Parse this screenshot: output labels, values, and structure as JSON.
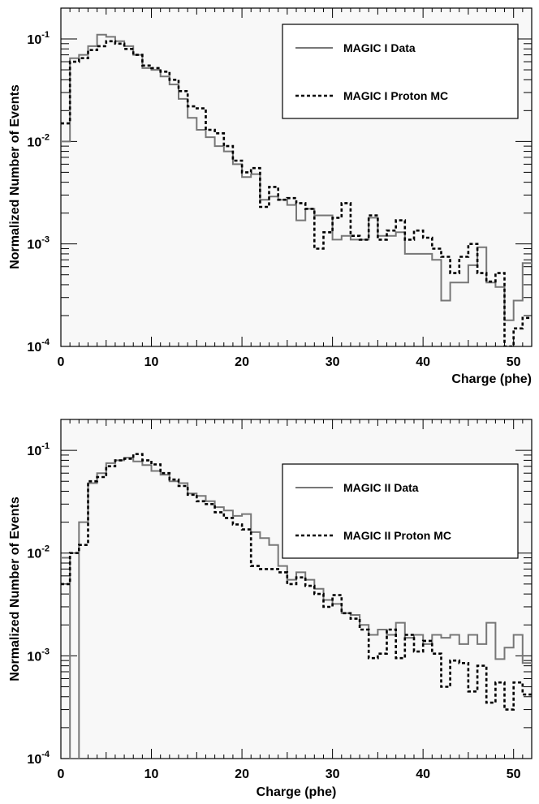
{
  "colors": {
    "background": "#ffffff",
    "frame": "#f8f8f8",
    "data_series": "#777777",
    "mc_series": "#000000"
  },
  "chart_data": [
    {
      "type": "line",
      "plot_style": "step-histogram",
      "title": "",
      "xlabel": "Charge (phe)",
      "ylabel": "Normalized Number of Events",
      "xlim": [
        0,
        52
      ],
      "ylim": [
        0.0001,
        0.2
      ],
      "yscale": "log",
      "grid": false,
      "legend_position": "top-right",
      "x_ticks": [
        {
          "value": 0,
          "label": "0"
        },
        {
          "value": 10,
          "label": "10"
        },
        {
          "value": 20,
          "label": "20"
        },
        {
          "value": 30,
          "label": "30"
        },
        {
          "value": 40,
          "label": "40"
        },
        {
          "value": 50,
          "label": "50"
        }
      ],
      "y_ticks": [
        {
          "value": 0.1,
          "base": "10",
          "exp": "-1"
        },
        {
          "value": 0.01,
          "base": "10",
          "exp": "-2"
        },
        {
          "value": 0.001,
          "base": "10",
          "exp": "-3"
        },
        {
          "value": 0.0001,
          "base": "10",
          "exp": "-4"
        }
      ],
      "bin_edges": [
        0,
        1,
        2,
        3,
        4,
        5,
        6,
        7,
        8,
        9,
        10,
        11,
        12,
        13,
        14,
        15,
        16,
        17,
        18,
        19,
        20,
        21,
        22,
        23,
        24,
        25,
        26,
        27,
        28,
        29,
        30,
        31,
        32,
        33,
        34,
        35,
        36,
        37,
        38,
        39,
        40,
        41,
        42,
        43,
        44,
        45,
        46,
        47,
        48,
        49,
        50,
        51,
        52
      ],
      "series": [
        {
          "name": "MAGIC I Data",
          "style": "solid",
          "values": [
            0.01,
            0.065,
            0.07,
            0.085,
            0.11,
            0.105,
            0.095,
            0.085,
            0.07,
            0.052,
            0.05,
            0.043,
            0.036,
            0.026,
            0.017,
            0.013,
            0.011,
            0.009,
            0.008,
            0.006,
            0.0045,
            0.0048,
            0.0027,
            0.0029,
            0.0027,
            0.0024,
            0.0017,
            0.0022,
            0.0019,
            0.0019,
            0.0011,
            0.0012,
            0.0011,
            0.0011,
            0.0018,
            0.0012,
            0.0012,
            0.0013,
            0.0008,
            0.0008,
            0.0008,
            0.0007,
            0.00028,
            0.00042,
            0.00042,
            0.00062,
            0.00093,
            0.00042,
            0.00038,
            0.00018,
            0.00028,
            0.00065
          ]
        },
        {
          "name": "MAGIC I Proton MC",
          "style": "dashed",
          "values": [
            0.015,
            0.06,
            0.065,
            0.078,
            0.085,
            0.095,
            0.09,
            0.08,
            0.07,
            0.055,
            0.052,
            0.048,
            0.04,
            0.031,
            0.022,
            0.021,
            0.013,
            0.012,
            0.009,
            0.0065,
            0.005,
            0.0055,
            0.0023,
            0.0036,
            0.0027,
            0.0028,
            0.0025,
            0.0022,
            0.0009,
            0.0013,
            0.0018,
            0.0025,
            0.0012,
            0.0011,
            0.0019,
            0.0011,
            0.00135,
            0.0017,
            0.0011,
            0.00135,
            0.00115,
            0.0009,
            0.00075,
            0.00052,
            0.00075,
            0.001,
            0.00052,
            0.00043,
            0.00052,
            0.0001,
            0.00015,
            0.00019
          ]
        }
      ]
    },
    {
      "type": "line",
      "plot_style": "step-histogram",
      "title": "",
      "xlabel": "Charge (phe)",
      "ylabel": "Normalized Number of Events",
      "xlim": [
        0,
        52
      ],
      "ylim": [
        0.0001,
        0.2
      ],
      "yscale": "log",
      "grid": false,
      "legend_position": "top-right",
      "x_ticks": [
        {
          "value": 0,
          "label": "0"
        },
        {
          "value": 10,
          "label": "10"
        },
        {
          "value": 20,
          "label": "20"
        },
        {
          "value": 30,
          "label": "30"
        },
        {
          "value": 40,
          "label": "40"
        },
        {
          "value": 50,
          "label": "50"
        }
      ],
      "y_ticks": [
        {
          "value": 0.1,
          "base": "10",
          "exp": "-1"
        },
        {
          "value": 0.01,
          "base": "10",
          "exp": "-2"
        },
        {
          "value": 0.001,
          "base": "10",
          "exp": "-3"
        },
        {
          "value": 0.0001,
          "base": "10",
          "exp": "-4"
        }
      ],
      "bin_edges": [
        0,
        1,
        2,
        3,
        4,
        5,
        6,
        7,
        8,
        9,
        10,
        11,
        12,
        13,
        14,
        15,
        16,
        17,
        18,
        19,
        20,
        21,
        22,
        23,
        24,
        25,
        26,
        27,
        28,
        29,
        30,
        31,
        32,
        33,
        34,
        35,
        36,
        37,
        38,
        39,
        40,
        41,
        42,
        43,
        44,
        45,
        46,
        47,
        48,
        49,
        50,
        51,
        52
      ],
      "series": [
        {
          "name": "MAGIC II Data",
          "style": "solid",
          "values": [
            0.009,
            0.0001,
            0.02,
            0.048,
            0.06,
            0.075,
            0.08,
            0.085,
            0.078,
            0.072,
            0.063,
            0.058,
            0.05,
            0.048,
            0.038,
            0.036,
            0.032,
            0.028,
            0.026,
            0.023,
            0.024,
            0.016,
            0.014,
            0.012,
            0.0075,
            0.0055,
            0.0065,
            0.0055,
            0.0045,
            0.0035,
            0.0032,
            0.0026,
            0.0025,
            0.002,
            0.0016,
            0.0018,
            0.0016,
            0.0021,
            0.0015,
            0.0016,
            0.0013,
            0.0016,
            0.0015,
            0.0016,
            0.0013,
            0.0016,
            0.0013,
            0.0021,
            0.00093,
            0.0012,
            0.0016,
            0.00085
          ]
        },
        {
          "name": "MAGIC II Proton MC",
          "style": "dashed",
          "values": [
            0.005,
            0.01,
            0.012,
            0.05,
            0.055,
            0.07,
            0.08,
            0.083,
            0.092,
            0.08,
            0.073,
            0.06,
            0.052,
            0.045,
            0.037,
            0.032,
            0.03,
            0.025,
            0.022,
            0.019,
            0.017,
            0.0075,
            0.007,
            0.007,
            0.0065,
            0.005,
            0.0058,
            0.0048,
            0.004,
            0.003,
            0.0039,
            0.0026,
            0.0023,
            0.0018,
            0.00095,
            0.00105,
            0.0018,
            0.00095,
            0.0016,
            0.0011,
            0.0014,
            0.00105,
            0.0005,
            0.0009,
            0.00085,
            0.00045,
            0.0008,
            0.00035,
            0.00055,
            0.0003,
            0.00055,
            0.00042
          ]
        }
      ]
    }
  ]
}
